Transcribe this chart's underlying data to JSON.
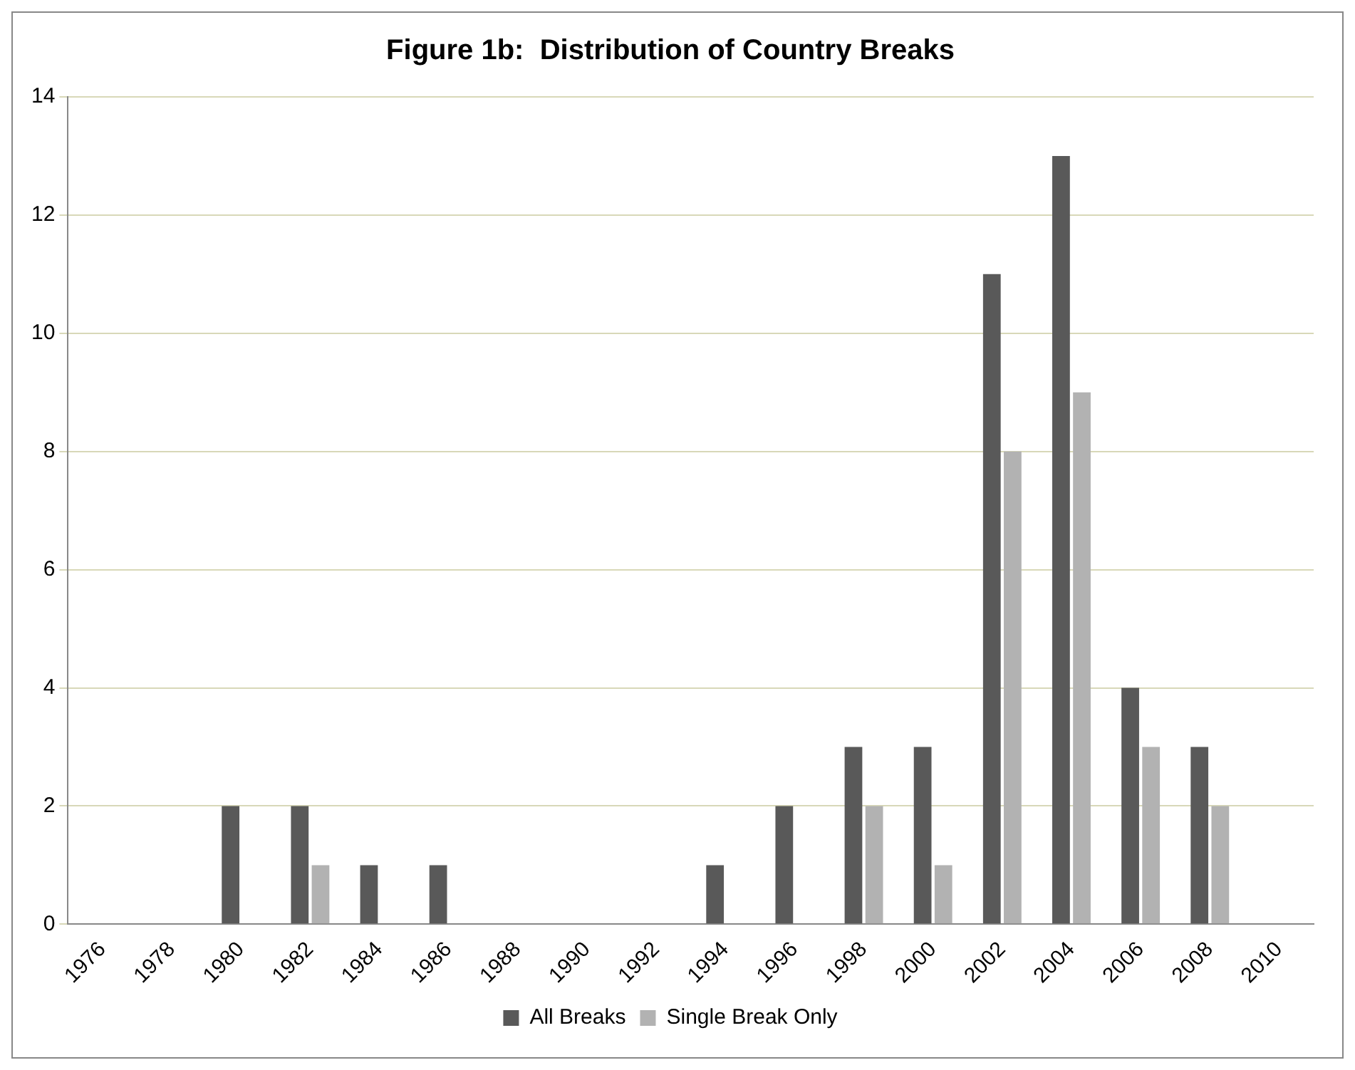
{
  "chart_data": {
    "type": "bar",
    "title": "Figure 1b:  Distribution of Country Breaks",
    "categories": [
      "1976",
      "1978",
      "1980",
      "1982",
      "1984",
      "1986",
      "1988",
      "1990",
      "1992",
      "1994",
      "1996",
      "1998",
      "2000",
      "2002",
      "2004",
      "2006",
      "2008",
      "2010"
    ],
    "series": [
      {
        "name": "All Breaks",
        "color": "#595959",
        "values": [
          0,
          0,
          2,
          2,
          1,
          1,
          0,
          0,
          0,
          1,
          2,
          3,
          3,
          11,
          13,
          4,
          3,
          0
        ]
      },
      {
        "name": "Single Break Only",
        "color": "#b2b2b2",
        "values": [
          0,
          0,
          0,
          1,
          0,
          0,
          0,
          0,
          0,
          0,
          0,
          2,
          1,
          8,
          9,
          3,
          2,
          0
        ]
      }
    ],
    "ylim": [
      0,
      14
    ],
    "yticks": [
      0,
      2,
      4,
      6,
      8,
      10,
      12,
      14
    ],
    "grid": "y",
    "legend": "bottom"
  }
}
